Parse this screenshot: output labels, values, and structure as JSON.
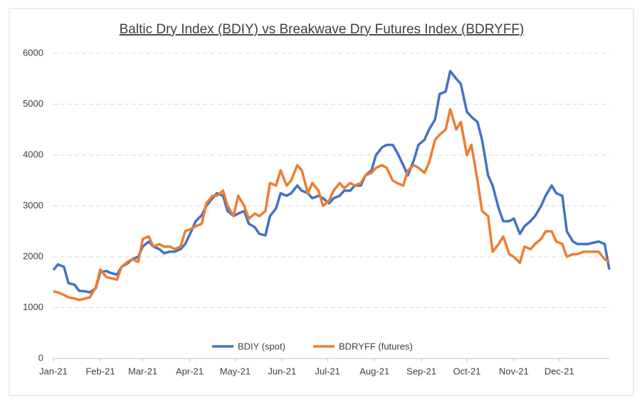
{
  "chart_data": {
    "type": "line",
    "title": "Baltic Dry Index (BDIY) vs Breakwave Dry Futures Index (BDRYFF)",
    "x": [
      0,
      3,
      7,
      10,
      14,
      17,
      21,
      24,
      28,
      31,
      35,
      38,
      42,
      45,
      49,
      52,
      56,
      59,
      63,
      66,
      70,
      73,
      77,
      80,
      84,
      87,
      91,
      94,
      98,
      101,
      105,
      108,
      112,
      115,
      119,
      122,
      126,
      129,
      133,
      136,
      140,
      143,
      147,
      150,
      154,
      157,
      161,
      164,
      168,
      171,
      175,
      178,
      182,
      185,
      189,
      192,
      196,
      199,
      203,
      206,
      210,
      213,
      217,
      220,
      224,
      227,
      231,
      234,
      238,
      241,
      245,
      248,
      252,
      255,
      259,
      262,
      266,
      269,
      273,
      276,
      280,
      283,
      287,
      290,
      294,
      297,
      301,
      304,
      308,
      311,
      315,
      318,
      322,
      325,
      329,
      332,
      336,
      339,
      343,
      346,
      350,
      353,
      357,
      360,
      364,
      367
    ],
    "xlim": [
      0,
      367
    ],
    "xticks": [
      {
        "value": 0,
        "label": "Jan-21"
      },
      {
        "value": 31,
        "label": "Feb-21"
      },
      {
        "value": 59,
        "label": "Mar-21"
      },
      {
        "value": 90,
        "label": "Apr-21"
      },
      {
        "value": 120,
        "label": "May-21"
      },
      {
        "value": 151,
        "label": "Jun-21"
      },
      {
        "value": 181,
        "label": "Jul-21"
      },
      {
        "value": 212,
        "label": "Aug-21"
      },
      {
        "value": 243,
        "label": "Sep-21"
      },
      {
        "value": 273,
        "label": "Oct-21"
      },
      {
        "value": 304,
        "label": "Nov-21"
      },
      {
        "value": 334,
        "label": "Dec-21"
      }
    ],
    "ylim": [
      0,
      6000
    ],
    "yticks": [
      0,
      1000,
      2000,
      3000,
      4000,
      5000,
      6000
    ],
    "grid": true,
    "legend": "bottom",
    "series": [
      {
        "name": "BDIY (spot)",
        "color": "#4472c4",
        "values": [
          1740,
          1850,
          1800,
          1480,
          1450,
          1330,
          1320,
          1300,
          1380,
          1700,
          1720,
          1680,
          1650,
          1800,
          1870,
          1950,
          2000,
          2200,
          2300,
          2200,
          2150,
          2070,
          2100,
          2100,
          2150,
          2250,
          2500,
          2700,
          2820,
          3000,
          3150,
          3250,
          3200,
          2900,
          2800,
          2850,
          2900,
          2650,
          2580,
          2450,
          2420,
          2800,
          2950,
          3250,
          3200,
          3250,
          3400,
          3300,
          3250,
          3150,
          3200,
          3150,
          3050,
          3150,
          3200,
          3300,
          3300,
          3400,
          3400,
          3600,
          3700,
          4000,
          4150,
          4200,
          4200,
          4050,
          3800,
          3600,
          3900,
          4200,
          4300,
          4500,
          4700,
          5200,
          5250,
          5650,
          5500,
          5400,
          4850,
          4750,
          4650,
          4300,
          3600,
          3400,
          2950,
          2700,
          2700,
          2750,
          2450,
          2600,
          2700,
          2800,
          3000,
          3200,
          3400,
          3250,
          3200,
          2500,
          2300,
          2250,
          2250,
          2250,
          2280,
          2300,
          2250,
          1750
        ]
      },
      {
        "name": "BDRYFF (futures)",
        "color": "#ed7d31",
        "values": [
          1320,
          1300,
          1250,
          1200,
          1180,
          1150,
          1180,
          1200,
          1400,
          1750,
          1600,
          1580,
          1550,
          1800,
          1900,
          1950,
          1900,
          2350,
          2400,
          2200,
          2250,
          2200,
          2200,
          2150,
          2200,
          2500,
          2550,
          2600,
          2650,
          3050,
          3200,
          3200,
          3300,
          3000,
          2800,
          3200,
          3000,
          2750,
          2850,
          2800,
          2900,
          3450,
          3400,
          3700,
          3400,
          3500,
          3800,
          3700,
          3250,
          3450,
          3300,
          3000,
          3100,
          3300,
          3450,
          3350,
          3450,
          3400,
          3450,
          3600,
          3650,
          3750,
          3800,
          3750,
          3500,
          3450,
          3400,
          3700,
          3800,
          3750,
          3650,
          3850,
          4300,
          4400,
          4500,
          4900,
          4500,
          4650,
          4000,
          4200,
          3500,
          2900,
          2800,
          2100,
          2250,
          2400,
          2050,
          2000,
          1880,
          2200,
          2150,
          2250,
          2350,
          2500,
          2500,
          2300,
          2250,
          2000,
          2050,
          2050,
          2100,
          2100,
          2100,
          2100,
          1950,
          1900
        ]
      }
    ]
  }
}
